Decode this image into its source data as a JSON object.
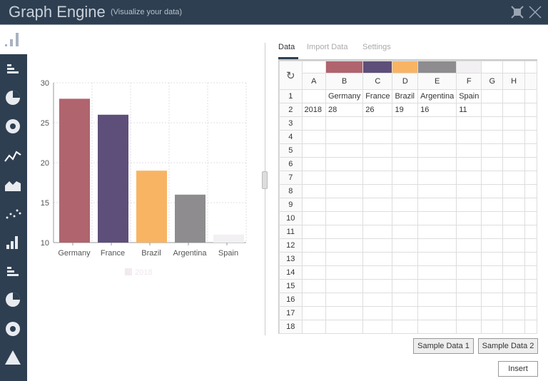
{
  "header": {
    "title": "Graph Engine",
    "subtitle": "(Visualize your data)"
  },
  "sidebar": {
    "items": [
      "vertical-bar",
      "horizontal-bar",
      "pie",
      "donut",
      "line",
      "area",
      "scatter",
      "bar",
      "horizontal-bar-2",
      "pie-2",
      "donut-2",
      "pyramid"
    ],
    "selected": "vertical-bar"
  },
  "tabs": [
    {
      "label": "Data",
      "active": true
    },
    {
      "label": "Import Data"
    },
    {
      "label": "Settings"
    }
  ],
  "sheet": {
    "columns": [
      "A",
      "B",
      "C",
      "D",
      "E",
      "F",
      "G",
      "H"
    ],
    "column_colors": [
      "",
      "#b0646e",
      "#5e4f7a",
      "#f8b463",
      "#8e8c8f",
      "#f2f0f3",
      "",
      ""
    ],
    "rows": [
      [
        "",
        "Germany",
        "France",
        "Brazil",
        "Argentina",
        "Spain",
        "",
        ""
      ],
      [
        "2018",
        "28",
        "26",
        "19",
        "16",
        "11",
        "",
        ""
      ]
    ],
    "row_count": 18
  },
  "buttons": {
    "sample1": "Sample Data 1",
    "sample2": "Sample Data 2",
    "insert": "Insert"
  },
  "chart_data": {
    "type": "bar",
    "categories": [
      "Germany",
      "France",
      "Brazil",
      "Argentina",
      "Spain"
    ],
    "series": [
      {
        "name": "2018",
        "values": [
          28,
          26,
          19,
          16,
          11
        ]
      }
    ],
    "colors": [
      "#b0646e",
      "#5e4f7a",
      "#f8b463",
      "#8e8c8f",
      "#f2f0f3"
    ],
    "ylim": [
      10,
      30
    ],
    "yticks": [
      10,
      15,
      20,
      25,
      30
    ],
    "grid": true,
    "legend": "bottom"
  }
}
